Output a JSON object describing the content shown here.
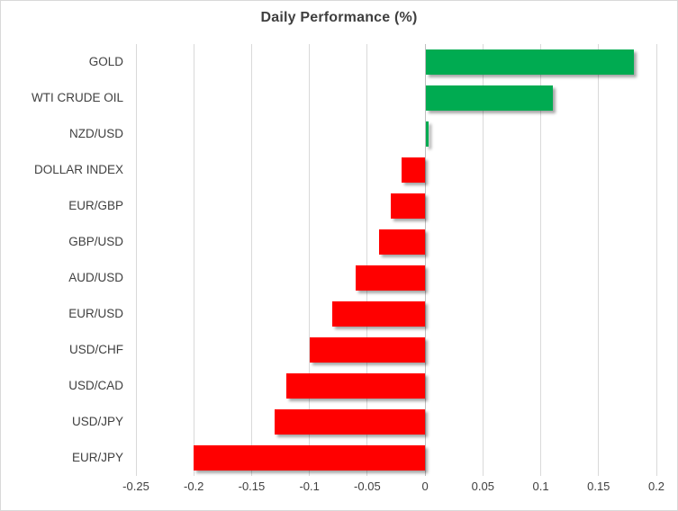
{
  "chart": {
    "title": "Daily Performance (%)"
  },
  "chart_data": {
    "type": "bar",
    "orientation": "horizontal",
    "title": "Daily Performance (%)",
    "categories": [
      "GOLD",
      "WTI CRUDE OIL",
      "NZD/USD",
      "DOLLAR INDEX",
      "EUR/GBP",
      "GBP/USD",
      "AUD/USD",
      "EUR/USD",
      "USD/CHF",
      "USD/CAD",
      "USD/JPY",
      "EUR/JPY"
    ],
    "values": [
      0.18,
      0.11,
      0.002,
      -0.02,
      -0.03,
      -0.04,
      -0.06,
      -0.08,
      -0.1,
      -0.12,
      -0.13,
      -0.2
    ],
    "xlabel": "",
    "ylabel": "",
    "xlim": [
      -0.25,
      0.2
    ],
    "xticks": [
      -0.25,
      -0.2,
      -0.15,
      -0.1,
      -0.05,
      0,
      0.05,
      0.1,
      0.15,
      0.2
    ],
    "xtick_labels": [
      "-0.25",
      "-0.2",
      "-0.15",
      "-0.1",
      "-0.05",
      "0",
      "0.05",
      "0.1",
      "0.15",
      "0.2"
    ],
    "grid": true,
    "legend": false,
    "positive_color": "#00AB51",
    "negative_color": "#FF0000",
    "gridline_color": "#d9d9d9",
    "zero_line_color": "#bfbfbf",
    "text_color": "#404040"
  }
}
